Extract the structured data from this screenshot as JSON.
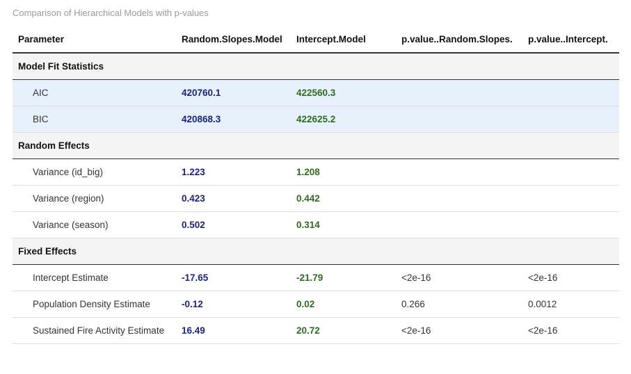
{
  "caption": "Comparison of Hierarchical Models with p-values",
  "columns": [
    "Parameter",
    "Random.Slopes.Model",
    "Intercept.Model",
    "p.value..Random.Slopes.",
    "p.value..Intercept."
  ],
  "groups": [
    {
      "title": "Model Fit Statistics",
      "rows": [
        {
          "parameter": "AIC",
          "random_slopes": "420760.1",
          "intercept": "422560.3",
          "p_random": "",
          "p_intercept": ""
        },
        {
          "parameter": "BIC",
          "random_slopes": "420868.3",
          "intercept": "422625.2",
          "p_random": "",
          "p_intercept": ""
        }
      ]
    },
    {
      "title": "Random Effects",
      "rows": [
        {
          "parameter": "Variance (id_big)",
          "random_slopes": "1.223",
          "intercept": "1.208",
          "p_random": "",
          "p_intercept": ""
        },
        {
          "parameter": "Variance (region)",
          "random_slopes": "0.423",
          "intercept": "0.442",
          "p_random": "",
          "p_intercept": ""
        },
        {
          "parameter": "Variance (season)",
          "random_slopes": "0.502",
          "intercept": "0.314",
          "p_random": "",
          "p_intercept": ""
        }
      ]
    },
    {
      "title": "Fixed Effects",
      "rows": [
        {
          "parameter": "Intercept Estimate",
          "random_slopes": "-17.65",
          "intercept": "-21.79",
          "p_random": "<2e-16",
          "p_intercept": "<2e-16"
        },
        {
          "parameter": "Population Density Estimate",
          "random_slopes": "-0.12",
          "intercept": "0.02",
          "p_random": "0.266",
          "p_intercept": "0.0012"
        },
        {
          "parameter": "Sustained Fire Activity Estimate",
          "random_slopes": "16.49",
          "intercept": "20.72",
          "p_random": "<2e-16",
          "p_intercept": "<2e-16"
        }
      ]
    }
  ],
  "colors": {
    "random_slopes_text": "#1a237e",
    "intercept_text": "#2e6b1f",
    "highlight_row": "#e6f1fb",
    "group_row": "#f4f4f4"
  }
}
